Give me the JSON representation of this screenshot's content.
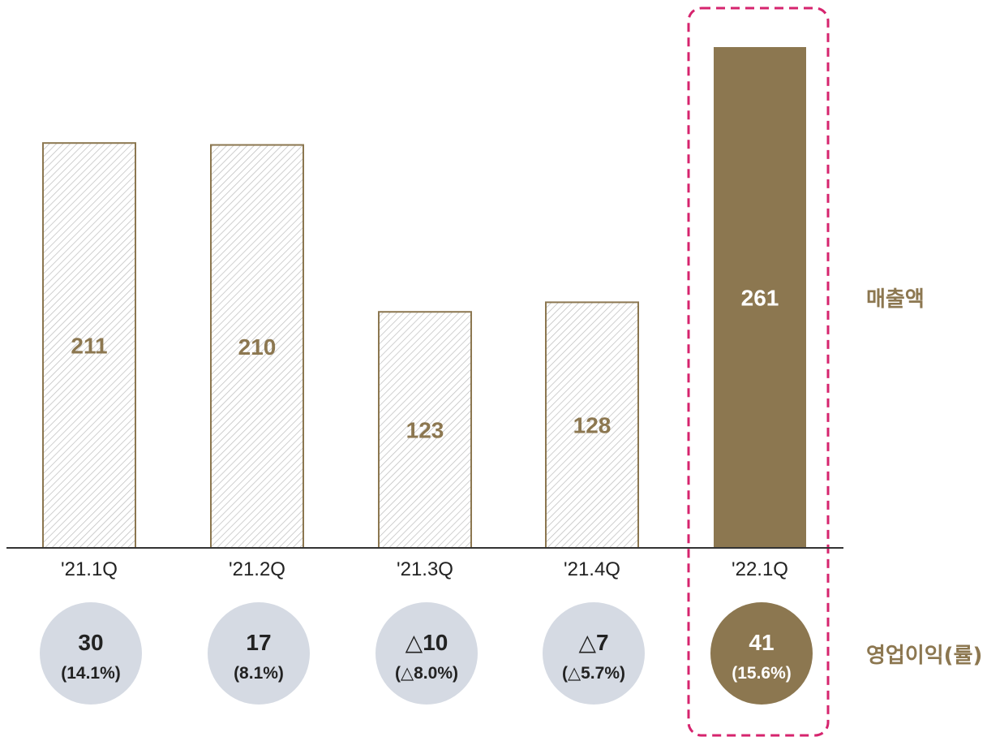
{
  "chart_data": {
    "type": "bar",
    "categories": [
      "'21.1Q",
      "'21.2Q",
      "'21.3Q",
      "'21.4Q",
      "'22.1Q"
    ],
    "series": [
      {
        "name": "매출액",
        "values": [
          211,
          210,
          123,
          128,
          261
        ],
        "value_labels": [
          "211",
          "210",
          "123",
          "128",
          "261"
        ]
      },
      {
        "name": "영업이익(률)",
        "values": [
          30,
          17,
          -10,
          -7,
          41
        ],
        "value_labels": [
          "30",
          "17",
          "△10",
          "△7",
          "41"
        ],
        "rates": [
          "(14.1%)",
          "(8.1%)",
          "(△8.0%)",
          "(△5.7%)",
          "(15.6%)"
        ]
      }
    ],
    "ylim": [
      0,
      261
    ],
    "highlight_index": 4,
    "grid": false,
    "legend": "right (series labels beside each row)"
  },
  "labels": {
    "revenue": "매출액",
    "operating_profit": "영업이익(률)"
  },
  "colors": {
    "bar_brown": "#8C7750",
    "hatch_line": "#B9B9B9",
    "circle_gray": "#D5DAE3",
    "highlight_dash": "#D6246E",
    "text_dark": "#222222",
    "axis": "#333333"
  }
}
